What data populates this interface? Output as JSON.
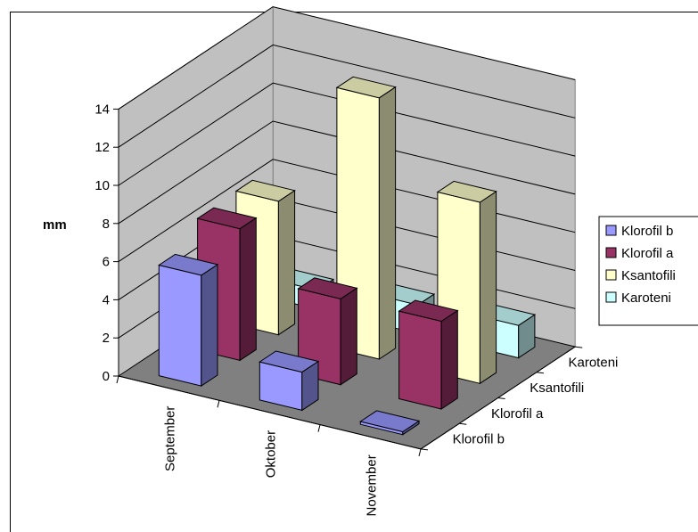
{
  "chart_data": {
    "type": "bar",
    "subtype": "3d-column",
    "title": "",
    "ylabel": "mm",
    "ylim": [
      0,
      14
    ],
    "yticks": [
      "0",
      "2",
      "4",
      "6",
      "8",
      "10",
      "12",
      "14"
    ],
    "categories": [
      "September",
      "Oktober",
      "November"
    ],
    "depth_labels": [
      "Karoteni",
      "Ksantofili",
      "Klorofil a",
      "Klorofil b"
    ],
    "series": [
      {
        "name": "Klorofil b",
        "color": "#9999ff",
        "values": [
          5.8,
          2.0,
          0.15
        ]
      },
      {
        "name": "Klorofil a",
        "color": "#993366",
        "values": [
          6.9,
          4.5,
          4.6
        ]
      },
      {
        "name": "Ksantofili",
        "color": "#ffffcc",
        "values": [
          7.0,
          13.7,
          9.5
        ]
      },
      {
        "name": "Karoteni",
        "color": "#ccffff",
        "values": [
          1.0,
          1.5,
          1.7
        ]
      }
    ],
    "grid": true,
    "legend": "right",
    "wall_color": "#c0c0c0",
    "floor_color": "#808080"
  }
}
